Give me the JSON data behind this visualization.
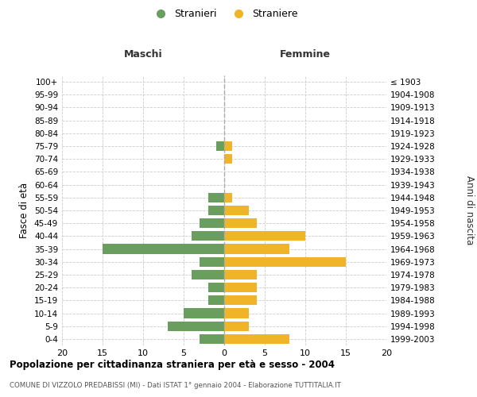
{
  "age_groups": [
    "0-4",
    "5-9",
    "10-14",
    "15-19",
    "20-24",
    "25-29",
    "30-34",
    "35-39",
    "40-44",
    "45-49",
    "50-54",
    "55-59",
    "60-64",
    "65-69",
    "70-74",
    "75-79",
    "80-84",
    "85-89",
    "90-94",
    "95-99",
    "100+"
  ],
  "birth_years": [
    "1999-2003",
    "1994-1998",
    "1989-1993",
    "1984-1988",
    "1979-1983",
    "1974-1978",
    "1969-1973",
    "1964-1968",
    "1959-1963",
    "1954-1958",
    "1949-1953",
    "1944-1948",
    "1939-1943",
    "1934-1938",
    "1929-1933",
    "1924-1928",
    "1919-1923",
    "1914-1918",
    "1909-1913",
    "1904-1908",
    "≤ 1903"
  ],
  "maschi": [
    3,
    7,
    5,
    2,
    2,
    4,
    3,
    15,
    4,
    3,
    2,
    2,
    0,
    0,
    0,
    1,
    0,
    0,
    0,
    0,
    0
  ],
  "femmine": [
    8,
    3,
    3,
    4,
    4,
    4,
    15,
    8,
    10,
    4,
    3,
    1,
    0,
    0,
    1,
    1,
    0,
    0,
    0,
    0,
    0
  ],
  "color_maschi": "#6a9e5e",
  "color_femmine": "#f0b429",
  "background_color": "#ffffff",
  "grid_color": "#cccccc",
  "title": "Popolazione per cittadinanza straniera per età e sesso - 2004",
  "subtitle": "COMUNE DI VIZZOLO PREDABISSI (MI) - Dati ISTAT 1° gennaio 2004 - Elaborazione TUTTITALIA.IT",
  "ylabel_left": "Fasce di età",
  "ylabel_right": "Anni di nascita",
  "header_maschi": "Maschi",
  "header_femmine": "Femmine",
  "legend_maschi": "Stranieri",
  "legend_femmine": "Straniere",
  "xlim": 20
}
